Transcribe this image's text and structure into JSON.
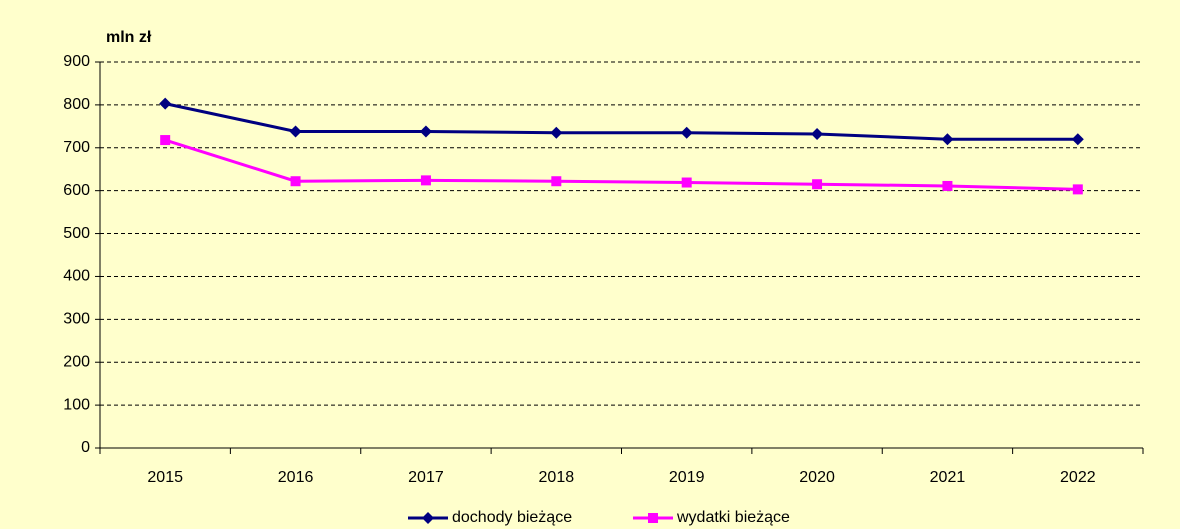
{
  "chart_data": {
    "type": "line",
    "y_axis_label": "mln zł",
    "categories": [
      "2015",
      "2016",
      "2017",
      "2018",
      "2019",
      "2020",
      "2021",
      "2022"
    ],
    "series": [
      {
        "name": "dochody bieżące",
        "color": "#000080",
        "marker": "diamond",
        "values": [
          803,
          738,
          738,
          735,
          735,
          732,
          720,
          720
        ]
      },
      {
        "name": "wydatki bieżące",
        "color": "#ff00ff",
        "marker": "square",
        "values": [
          718,
          622,
          624,
          622,
          619,
          615,
          611,
          603
        ]
      }
    ],
    "ylim": [
      0,
      900
    ],
    "yticks": [
      0,
      100,
      200,
      300,
      400,
      500,
      600,
      700,
      800,
      900
    ],
    "grid": true,
    "legend": "bottom"
  }
}
